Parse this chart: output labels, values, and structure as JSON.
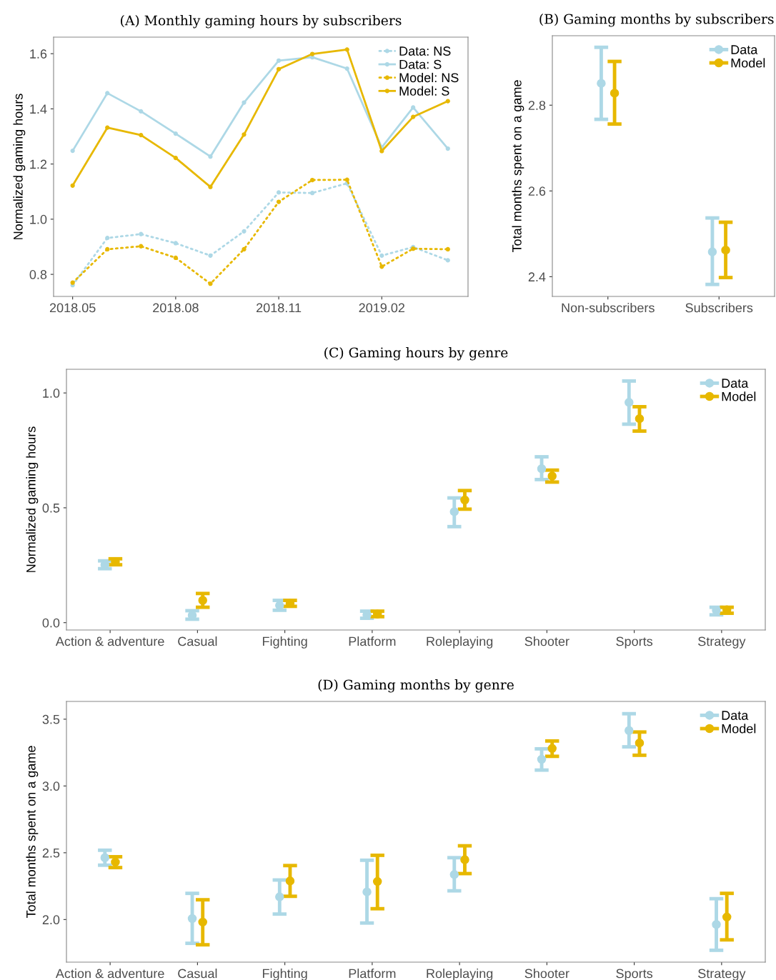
{
  "chart_data": [
    {
      "type": "line",
      "title": "(A) Monthly gaming hours by subscribers",
      "ylabel": "Normalized gaming hours",
      "x": [
        "2018-05",
        "2018-06",
        "2018-07",
        "2018-08",
        "2018-09",
        "2018-10",
        "2018-11",
        "2018-12",
        "2019-01",
        "2019-02",
        "2019-03",
        "2019-04"
      ],
      "xlim": [
        "2018-04-14",
        "2019-04-19"
      ],
      "xticks": [
        {
          "value": "2018-05",
          "label": "2018.05"
        },
        {
          "value": "2018-08",
          "label": "2018.08"
        },
        {
          "value": "2018-11",
          "label": "2018.11"
        },
        {
          "value": "2019-02",
          "label": "2019.02"
        }
      ],
      "ylim": [
        0.72,
        1.66
      ],
      "yticks": [
        0.8,
        {
          "value": 1.0,
          "label": "1.0"
        },
        1.2,
        1.4,
        1.6
      ],
      "grid": false,
      "legend": "top right",
      "marker": "circle",
      "series": [
        {
          "name": "Data: NS",
          "color": "#add8e6",
          "line_style": "dotted",
          "values": [
            0.761,
            0.932,
            0.946,
            0.913,
            0.868,
            0.956,
            1.097,
            1.095,
            1.13,
            0.868,
            0.899,
            0.851
          ]
        },
        {
          "name": "Data: S",
          "color": "#add8e6",
          "line_style": "solid",
          "values": [
            1.248,
            1.457,
            1.391,
            1.31,
            1.227,
            1.423,
            1.575,
            1.587,
            1.546,
            1.26,
            1.405,
            1.256
          ]
        },
        {
          "name": "Model: NS",
          "color": "#e7b800",
          "line_style": "dotted",
          "values": [
            0.77,
            0.891,
            0.902,
            0.86,
            0.766,
            0.891,
            1.063,
            1.142,
            1.143,
            0.828,
            0.893,
            0.891
          ]
        },
        {
          "name": "Model: S",
          "color": "#e7b800",
          "line_style": "solid",
          "values": [
            1.122,
            1.332,
            1.305,
            1.222,
            1.117,
            1.307,
            1.544,
            1.599,
            1.615,
            1.247,
            1.371,
            1.428
          ]
        }
      ]
    },
    {
      "type": "scatter",
      "title": "(B) Gaming months by subscribers",
      "ylabel": "Total months spent on a game",
      "categories": [
        "Non-subscribers",
        "Subscribers"
      ],
      "ylim": [
        2.354,
        2.962
      ],
      "yticks": [
        2.4,
        2.6,
        2.8
      ],
      "grid": false,
      "legend": "top right",
      "marker": "circle",
      "series": [
        {
          "name": "Data",
          "color": "#add8e6",
          "values": [
            2.851,
            2.458
          ],
          "errors": [
            [
              2.767,
              2.935
            ],
            [
              2.382,
              2.537
            ]
          ]
        },
        {
          "name": "Model",
          "color": "#e7b800",
          "values": [
            2.828,
            2.462
          ],
          "errors": [
            [
              2.756,
              2.902
            ],
            [
              2.398,
              2.527
            ]
          ]
        }
      ]
    },
    {
      "type": "scatter",
      "title": "(C) Gaming hours by genre",
      "ylabel": "Normalized gaming hours",
      "categories": [
        "Action & adventure",
        "Casual",
        "Fighting",
        "Platform",
        "Roleplaying",
        "Shooter",
        "Sports",
        "Strategy"
      ],
      "ylim": [
        -0.032,
        1.103
      ],
      "yticks": [
        {
          "value": 0.0,
          "label": "0.0"
        },
        0.5,
        {
          "value": 1.0,
          "label": "1.0"
        }
      ],
      "grid": false,
      "legend": "top right",
      "marker": "circle",
      "series": [
        {
          "name": "Data",
          "color": "#add8e6",
          "values": [
            0.252,
            0.032,
            0.075,
            0.034,
            0.483,
            0.67,
            0.959,
            0.054
          ],
          "errors": [
            [
              0.235,
              0.269
            ],
            [
              0.015,
              0.052
            ],
            [
              0.054,
              0.097
            ],
            [
              0.019,
              0.05
            ],
            [
              0.418,
              0.543
            ],
            [
              0.623,
              0.722
            ],
            [
              0.864,
              1.052
            ],
            [
              0.034,
              0.067
            ]
          ]
        },
        {
          "name": "Model",
          "color": "#e7b800",
          "values": [
            0.265,
            0.097,
            0.084,
            0.037,
            0.534,
            0.638,
            0.888,
            0.056
          ],
          "errors": [
            [
              0.252,
              0.278
            ],
            [
              0.067,
              0.127
            ],
            [
              0.071,
              0.097
            ],
            [
              0.026,
              0.05
            ],
            [
              0.494,
              0.575
            ],
            [
              0.612,
              0.664
            ],
            [
              0.834,
              0.94
            ],
            [
              0.041,
              0.067
            ]
          ]
        }
      ]
    },
    {
      "type": "scatter",
      "title": "(D) Gaming months by genre",
      "ylabel": "Total months spent on a game",
      "categories": [
        "Action & adventure",
        "Casual",
        "Fighting",
        "Platform",
        "Roleplaying",
        "Shooter",
        "Sports",
        "Strategy"
      ],
      "ylim": [
        1.681,
        3.633
      ],
      "yticks": [
        {
          "value": 2.0,
          "label": "2.0"
        },
        2.5,
        {
          "value": 3.0,
          "label": "3.0"
        },
        3.5
      ],
      "grid": false,
      "legend": "top right",
      "marker": "circle",
      "series": [
        {
          "name": "Data",
          "color": "#add8e6",
          "values": [
            2.463,
            2.007,
            2.17,
            2.207,
            2.337,
            3.2,
            3.415,
            1.963
          ],
          "errors": [
            [
              2.407,
              2.519
            ],
            [
              1.822,
              2.196
            ],
            [
              2.041,
              2.296
            ],
            [
              1.974,
              2.444
            ],
            [
              2.215,
              2.463
            ],
            [
              3.119,
              3.278
            ],
            [
              3.293,
              3.541
            ],
            [
              1.77,
              2.156
            ]
          ]
        },
        {
          "name": "Model",
          "color": "#e7b800",
          "values": [
            2.43,
            1.981,
            2.289,
            2.285,
            2.448,
            3.281,
            3.322,
            2.019
          ],
          "errors": [
            [
              2.389,
              2.47
            ],
            [
              1.811,
              2.148
            ],
            [
              2.174,
              2.404
            ],
            [
              2.081,
              2.481
            ],
            [
              2.344,
              2.552
            ],
            [
              3.222,
              3.337
            ],
            [
              3.23,
              3.404
            ],
            [
              1.848,
              2.196
            ]
          ]
        }
      ]
    }
  ]
}
